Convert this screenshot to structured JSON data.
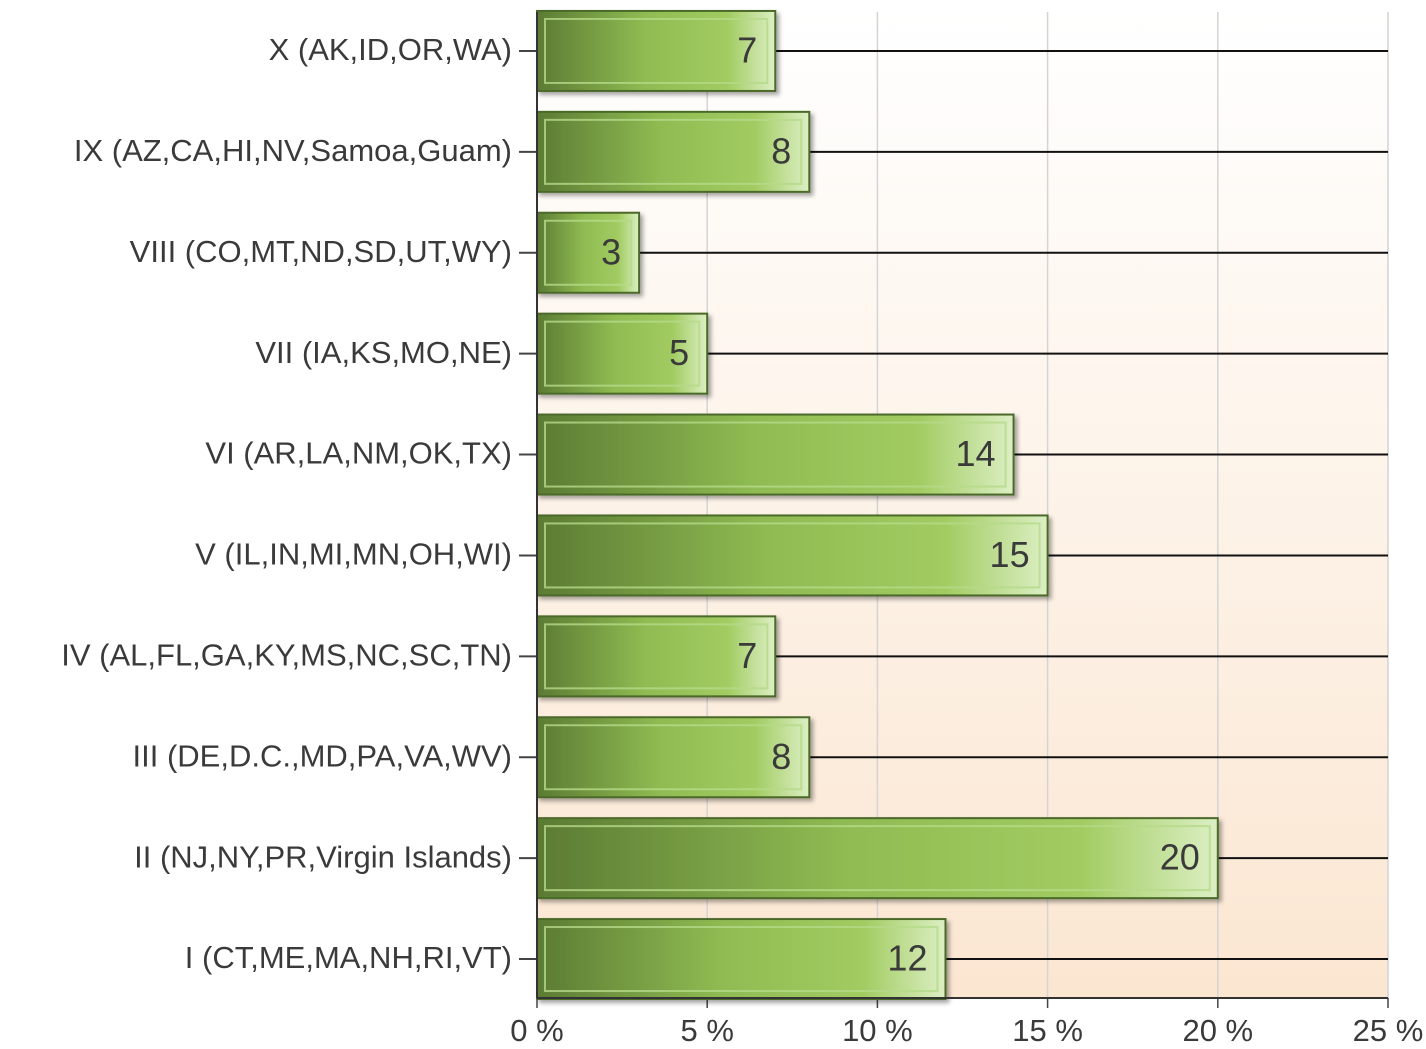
{
  "chart_data": {
    "type": "bar",
    "orientation": "horizontal",
    "categories": [
      "X (AK,ID,OR,WA)",
      "IX (AZ,CA,HI,NV,Samoa,Guam)",
      "VIII (CO,MT,ND,SD,UT,WY)",
      "VII (IA,KS,MO,NE)",
      "VI (AR,LA,NM,OK,TX)",
      "V (IL,IN,MI,MN,OH,WI)",
      "IV (AL,FL,GA,KY,MS,NC,SC,TN)",
      "III (DE,D.C.,MD,PA,VA,WV)",
      "II (NJ,NY,PR,Virgin Islands)",
      "I (CT,ME,MA,NH,RI,VT)"
    ],
    "values": [
      7,
      8,
      3,
      5,
      14,
      15,
      7,
      8,
      20,
      12
    ],
    "color": "#9dc75a",
    "xlim": [
      0,
      25
    ],
    "xticks": [
      {
        "value": 0,
        "label": "0 %"
      },
      {
        "value": 5,
        "label": "5 %"
      },
      {
        "value": 10,
        "label": "10 %"
      },
      {
        "value": 15,
        "label": "15 %"
      },
      {
        "value": 20,
        "label": "20 %"
      },
      {
        "value": 25,
        "label": "25 %"
      }
    ],
    "grid": true
  }
}
